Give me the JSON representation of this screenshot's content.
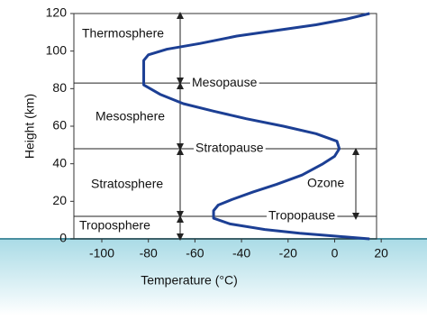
{
  "chart_data": {
    "type": "line",
    "x_label": "Temperature (°C)",
    "y_label": "Height (km)",
    "xlim": [
      -112,
      18
    ],
    "ylim": [
      0,
      120
    ],
    "xticks": [
      -100,
      -80,
      -60,
      -40,
      -20,
      0,
      20
    ],
    "yticks": [
      0,
      20,
      40,
      60,
      80,
      100,
      120
    ],
    "series": [
      {
        "color": "#1c3f94",
        "x": [
          15,
          0,
          -15,
          -30,
          -45,
          -52,
          -52,
          -50,
          -44,
          -35,
          -25,
          -14,
          -5,
          0,
          2,
          1,
          -8,
          -22,
          -38,
          -52,
          -65,
          -75,
          -82,
          -82,
          -80,
          -72,
          -58,
          -42,
          -25,
          -8,
          5,
          15
        ],
        "values": [
          0,
          1.5,
          3,
          5,
          8,
          11,
          15,
          18,
          21,
          25,
          29,
          34,
          40,
          44,
          48,
          52,
          56,
          60,
          64,
          68,
          72,
          77,
          82,
          95,
          98,
          101,
          104,
          108,
          111,
          114,
          117,
          120
        ]
      }
    ],
    "layers": [
      "Thermosphere",
      "Mesosphere",
      "Stratosphere",
      "Troposphere"
    ],
    "boundaries": [
      {
        "label": "Mesopause",
        "height": 83
      },
      {
        "label": "Stratopause",
        "height": 48
      },
      {
        "label": "Tropopause",
        "height": 12
      }
    ],
    "ozone": "Ozone"
  }
}
